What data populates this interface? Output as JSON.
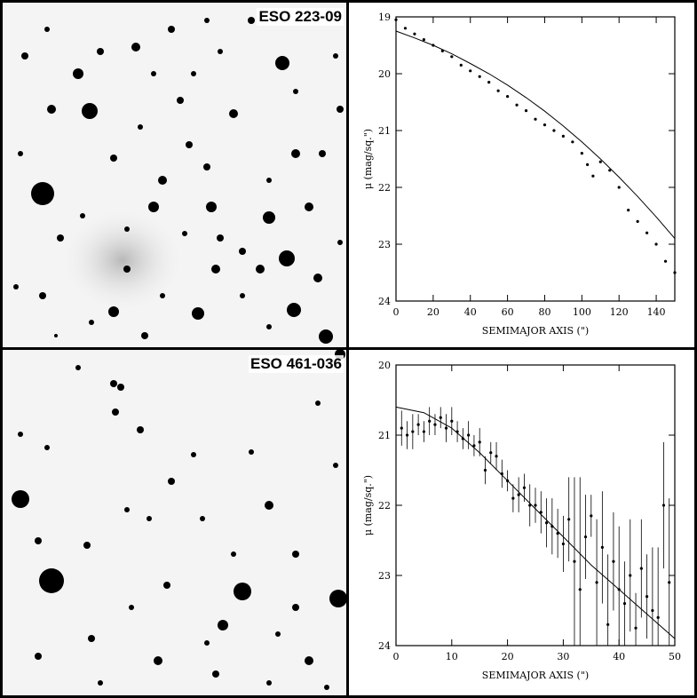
{
  "figure": {
    "panels": [
      {
        "image_label": "ESO 223-09",
        "chart_data": {
          "type": "scatter",
          "xlabel": "SEMIMAJOR AXIS (\")",
          "ylabel": "μ (mag/sq.\")",
          "xlim": [
            0,
            150
          ],
          "ylim": [
            24,
            19
          ],
          "x_ticks": [
            0,
            20,
            40,
            60,
            80,
            100,
            120,
            140
          ],
          "y_ticks": [
            19,
            20,
            21,
            22,
            23,
            24
          ],
          "x_tick_labels": [
            "0",
            "20",
            "40",
            "60",
            "80",
            "100",
            "120",
            "140"
          ],
          "y_tick_labels": [
            "19",
            "20",
            "21",
            "22",
            "23",
            "24"
          ],
          "series": [
            {
              "kind": "points",
              "x": [
                0,
                5,
                10,
                15,
                20,
                25,
                30,
                35,
                40,
                45,
                50,
                55,
                60,
                65,
                70,
                75,
                80,
                85,
                90,
                95,
                100,
                103,
                106,
                110,
                115,
                120,
                125,
                130,
                135,
                140,
                145,
                150
              ],
              "y": [
                19.05,
                19.2,
                19.3,
                19.4,
                19.5,
                19.6,
                19.7,
                19.85,
                19.95,
                20.05,
                20.15,
                20.3,
                20.4,
                20.55,
                20.65,
                20.8,
                20.9,
                21.0,
                21.1,
                21.2,
                21.4,
                21.6,
                21.8,
                21.55,
                21.7,
                22.0,
                22.4,
                22.6,
                22.8,
                23.0,
                23.3,
                23.5
              ]
            },
            {
              "kind": "fit",
              "x": [
                0,
                10,
                20,
                30,
                40,
                50,
                60,
                70,
                80,
                90,
                100,
                110,
                120,
                130,
                140,
                150
              ],
              "y": [
                19.25,
                19.37,
                19.5,
                19.65,
                19.82,
                20.0,
                20.2,
                20.42,
                20.66,
                20.92,
                21.2,
                21.5,
                21.82,
                22.16,
                22.52,
                22.9
              ]
            }
          ]
        }
      },
      {
        "image_label": "ESO 461-036",
        "chart_data": {
          "type": "scatter",
          "xlabel": "SEMIMAJOR AXIS (\")",
          "ylabel": "μ (mag/sq.\")",
          "xlim": [
            0,
            50
          ],
          "ylim": [
            24,
            20
          ],
          "x_ticks": [
            0,
            10,
            20,
            30,
            40,
            50
          ],
          "y_ticks": [
            20,
            21,
            22,
            23,
            24
          ],
          "x_tick_labels": [
            "0",
            "10",
            "20",
            "30",
            "40",
            "50"
          ],
          "y_tick_labels": [
            "20",
            "21",
            "22",
            "23",
            "24"
          ],
          "series": [
            {
              "kind": "points",
              "x": [
                1,
                2,
                3,
                4,
                5,
                6,
                7,
                8,
                9,
                10,
                11,
                12,
                13,
                14,
                15,
                16,
                17,
                18,
                19,
                20,
                21,
                22,
                23,
                24,
                25,
                26,
                27,
                28,
                29,
                30,
                31,
                32,
                33,
                34,
                35,
                36,
                37,
                38,
                39,
                40,
                41,
                42,
                43,
                44,
                45,
                46,
                47,
                48,
                49
              ],
              "y": [
                20.9,
                21.0,
                20.95,
                20.85,
                20.95,
                20.8,
                20.85,
                20.75,
                20.9,
                20.8,
                20.95,
                21.05,
                21.0,
                21.15,
                21.1,
                21.5,
                21.25,
                21.3,
                21.55,
                21.65,
                21.9,
                21.85,
                21.75,
                22.0,
                22.0,
                22.1,
                22.25,
                22.3,
                22.4,
                22.55,
                22.2,
                22.8,
                23.2,
                22.45,
                22.15,
                23.1,
                22.6,
                23.7,
                22.8,
                23.2,
                23.4,
                23.0,
                23.75,
                22.9,
                23.3,
                23.5,
                23.6,
                22.0,
                23.1
              ],
              "err": [
                0.25,
                0.2,
                0.25,
                0.15,
                0.15,
                0.2,
                0.15,
                0.15,
                0.2,
                0.2,
                0.15,
                0.15,
                0.2,
                0.15,
                0.2,
                0.2,
                0.15,
                0.2,
                0.2,
                0.15,
                0.2,
                0.25,
                0.2,
                0.3,
                0.25,
                0.3,
                0.35,
                0.4,
                0.35,
                0.4,
                0.6,
                1.2,
                1.6,
                0.6,
                0.3,
                0.9,
                0.8,
                1.0,
                0.7,
                0.9,
                0.6,
                0.8,
                0.5,
                0.7,
                0.6,
                0.9,
                1.0,
                0.9,
                1.2
              ]
            },
            {
              "kind": "fit",
              "x": [
                0,
                5,
                10,
                15,
                20,
                25,
                30,
                35,
                40,
                45,
                50
              ],
              "y": [
                20.6,
                20.68,
                20.9,
                21.25,
                21.65,
                22.05,
                22.45,
                22.85,
                23.2,
                23.55,
                23.9
              ]
            }
          ]
        }
      }
    ]
  }
}
